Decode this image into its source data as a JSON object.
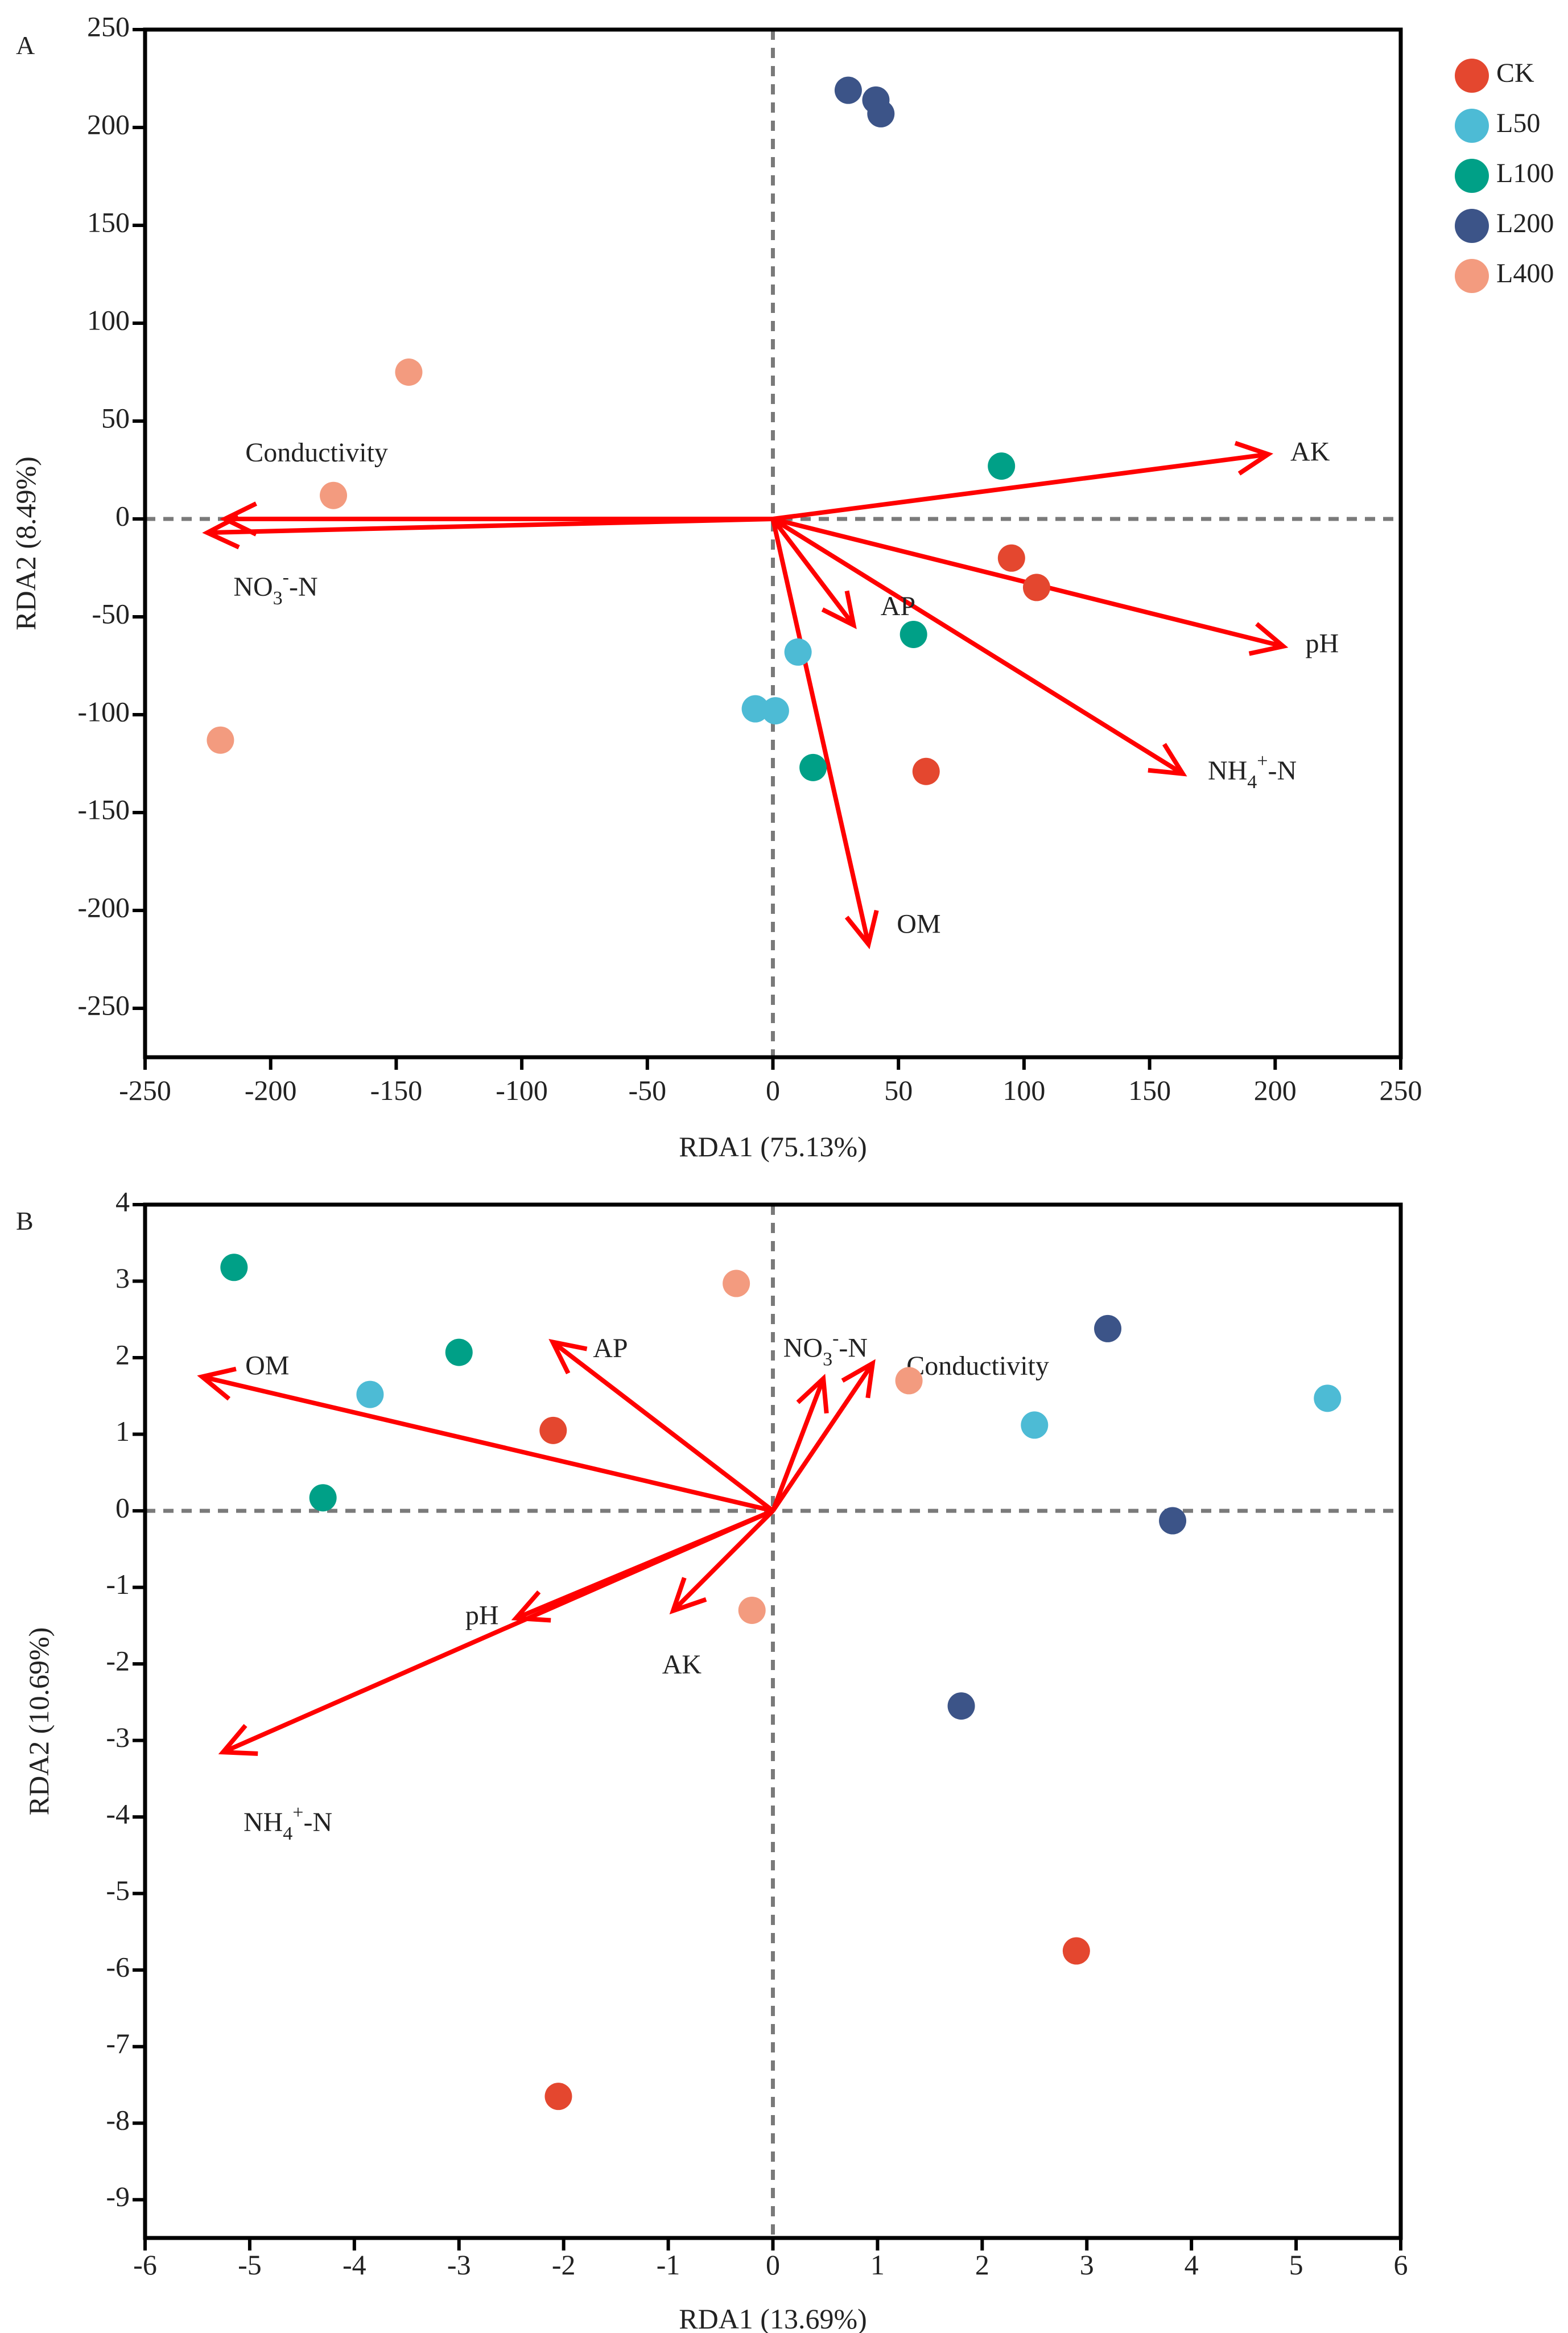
{
  "legend": {
    "items": [
      {
        "label": "CK",
        "color": "#E4472F"
      },
      {
        "label": "L50",
        "color": "#4DBBD5"
      },
      {
        "label": "L100",
        "color": "#00A087"
      },
      {
        "label": "L200",
        "color": "#3C5488"
      },
      {
        "label": "L400",
        "color": "#F39B7F"
      }
    ]
  },
  "arrow_color": "#FF0000",
  "chart_data": [
    {
      "type": "scatter",
      "panel": "A",
      "xlabel": "RDA1 (75.13%)",
      "ylabel": "RDA2 (8.49%)",
      "xlim": [
        -250,
        250
      ],
      "ylim": [
        -275,
        250
      ],
      "xticks": [
        -250,
        -200,
        -150,
        -100,
        -50,
        0,
        50,
        100,
        150,
        200,
        250
      ],
      "yticks": [
        -250,
        -200,
        -150,
        -100,
        -50,
        0,
        50,
        100,
        150,
        200,
        250
      ],
      "reference_lines": {
        "x": 0,
        "y": 0
      },
      "series": [
        {
          "name": "CK",
          "color": "#E4472F",
          "points": [
            [
              95,
              -20
            ],
            [
              105,
              -35
            ],
            [
              61,
              -129
            ]
          ]
        },
        {
          "name": "L50",
          "color": "#4DBBD5",
          "points": [
            [
              10,
              -68
            ],
            [
              -7,
              -97
            ],
            [
              1,
              -98
            ]
          ]
        },
        {
          "name": "L100",
          "color": "#00A087",
          "points": [
            [
              91,
              27
            ],
            [
              56,
              -59
            ],
            [
              16,
              -127
            ]
          ]
        },
        {
          "name": "L200",
          "color": "#3C5488",
          "points": [
            [
              30,
              219
            ],
            [
              41,
              214
            ],
            [
              43,
              207
            ]
          ]
        },
        {
          "name": "L400",
          "color": "#F39B7F",
          "points": [
            [
              -145,
              75
            ],
            [
              -175,
              12
            ],
            [
              -220,
              -113
            ]
          ]
        }
      ],
      "vectors": [
        {
          "label": "AK",
          "x": 197,
          "y": 33
        },
        {
          "label": "pH",
          "x": 203,
          "y": -65
        },
        {
          "label": "NH4+-N",
          "x": 163,
          "y": -130
        },
        {
          "label": "AP",
          "x": 32,
          "y": -54
        },
        {
          "label": "OM",
          "x": 38,
          "y": -217
        },
        {
          "label": "Conductivity",
          "x": -218,
          "y": 0
        },
        {
          "label": "NO3--N",
          "x": -225,
          "y": -7
        }
      ]
    },
    {
      "type": "scatter",
      "panel": "B",
      "xlabel": "RDA1 (13.69%)",
      "ylabel": "RDA2 (10.69%)",
      "xlim": [
        -6,
        6
      ],
      "ylim": [
        -9.5,
        4
      ],
      "xticks": [
        -6,
        -5,
        -4,
        -3,
        -2,
        -1,
        0,
        1,
        2,
        3,
        4,
        5,
        6
      ],
      "yticks": [
        -9,
        -8,
        -7,
        -6,
        -5,
        -4,
        -3,
        -2,
        -1,
        0,
        1,
        2,
        3,
        4
      ],
      "reference_lines": {
        "x": 0,
        "y": 0
      },
      "series": [
        {
          "name": "CK",
          "color": "#E4472F",
          "points": [
            [
              -2.1,
              1.05
            ],
            [
              2.9,
              -5.75
            ],
            [
              -2.05,
              -7.65
            ]
          ]
        },
        {
          "name": "L50",
          "color": "#4DBBD5",
          "points": [
            [
              -3.85,
              1.52
            ],
            [
              2.5,
              1.12
            ],
            [
              5.3,
              1.47
            ]
          ]
        },
        {
          "name": "L100",
          "color": "#00A087",
          "points": [
            [
              -5.15,
              3.18
            ],
            [
              -3.0,
              2.07
            ],
            [
              -4.3,
              0.17
            ]
          ]
        },
        {
          "name": "L200",
          "color": "#3C5488",
          "points": [
            [
              3.2,
              2.38
            ],
            [
              3.82,
              -0.13
            ],
            [
              1.8,
              -2.55
            ]
          ]
        },
        {
          "name": "L400",
          "color": "#F39B7F",
          "points": [
            [
              -0.35,
              2.97
            ],
            [
              1.3,
              1.7
            ],
            [
              -0.2,
              -1.3
            ]
          ]
        }
      ],
      "vectors": [
        {
          "label": "OM",
          "x": -5.45,
          "y": 1.75
        },
        {
          "label": "AP",
          "x": -2.1,
          "y": 2.2
        },
        {
          "label": "NO3--N",
          "x": 0.48,
          "y": 1.72
        },
        {
          "label": "Conductivity",
          "x": 0.95,
          "y": 1.92
        },
        {
          "label": "pH",
          "x": -2.45,
          "y": -1.4
        },
        {
          "label": "AK",
          "x": -0.95,
          "y": -1.3
        },
        {
          "label": "NH4+-N",
          "x": -5.25,
          "y": -3.15
        }
      ]
    }
  ]
}
